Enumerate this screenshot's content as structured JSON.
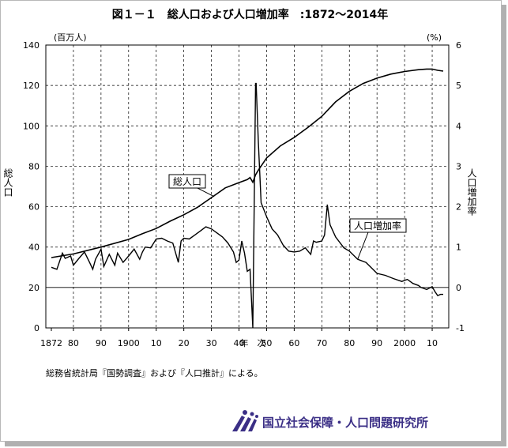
{
  "title": "図１－１　総人口および人口増加率　:1872～2014年",
  "source_note": "総務省統計局『国勢調査』および『人口推計』による。",
  "organization": "国立社会保障・人口問題研究所",
  "colors": {
    "line": "#000000",
    "grid": "#000000",
    "logo": "#3b2f86"
  },
  "chart_data": {
    "type": "line",
    "title": "図１－１　総人口および人口増加率　:1872～2014年",
    "xlabel": "年　次",
    "left_unit": "(百万人)",
    "right_unit": "(%)",
    "left_axis_label": "総人口",
    "right_axis_label": "人口増加率",
    "xlim": [
      1870,
      2016
    ],
    "ylim_left": [
      0,
      140
    ],
    "ylim_right": [
      -1,
      6
    ],
    "x_ticks": [
      1872,
      1880,
      1890,
      1900,
      1910,
      1920,
      1930,
      1940,
      1950,
      1960,
      1970,
      1980,
      1990,
      2000,
      2010
    ],
    "x_tick_labels": [
      "1872",
      "80",
      "90",
      "1900",
      "10",
      "20",
      "30",
      "40",
      "50",
      "60",
      "70",
      "80",
      "90",
      "2000",
      "10"
    ],
    "y_left_ticks": [
      0,
      20,
      40,
      60,
      80,
      100,
      120,
      140
    ],
    "y_right_ticks": [
      -1,
      0,
      1,
      2,
      3,
      4,
      5,
      6
    ],
    "grid": true,
    "series": [
      {
        "name": "総人口",
        "axis": "left",
        "x": [
          1872,
          1880,
          1890,
          1900,
          1905,
          1910,
          1915,
          1920,
          1925,
          1930,
          1935,
          1940,
          1943,
          1944,
          1945,
          1946,
          1947,
          1950,
          1955,
          1960,
          1965,
          1970,
          1975,
          1980,
          1985,
          1990,
          1995,
          2000,
          2005,
          2008,
          2010,
          2012,
          2014
        ],
        "values": [
          34.8,
          36.6,
          40.0,
          43.8,
          46.6,
          49.2,
          52.8,
          56.0,
          59.7,
          64.5,
          69.3,
          71.9,
          73.4,
          74.4,
          72.1,
          75.8,
          78.1,
          84.1,
          90.1,
          94.3,
          99.2,
          104.7,
          111.9,
          117.1,
          121.0,
          123.6,
          125.6,
          126.9,
          127.8,
          128.1,
          128.1,
          127.5,
          127.1
        ]
      },
      {
        "name": "人口増加率",
        "axis": "right",
        "x": [
          1872,
          1874,
          1876,
          1877,
          1879,
          1880,
          1882,
          1884,
          1886,
          1887,
          1888,
          1890,
          1891,
          1893,
          1895,
          1896,
          1898,
          1900,
          1902,
          1904,
          1905,
          1906,
          1908,
          1910,
          1912,
          1914,
          1916,
          1918,
          1919,
          1920,
          1922,
          1924,
          1926,
          1928,
          1930,
          1932,
          1934,
          1936,
          1938,
          1939,
          1940,
          1941,
          1942,
          1943,
          1944,
          1945,
          1946,
          1946.2,
          1947,
          1948,
          1950,
          1952,
          1954,
          1956,
          1958,
          1960,
          1962,
          1964,
          1966,
          1967,
          1968,
          1970,
          1971,
          1972,
          1973,
          1975,
          1978,
          1980,
          1983,
          1986,
          1990,
          1993,
          1996,
          1999,
          2001,
          2003,
          2005,
          2006,
          2008,
          2010,
          2011,
          2012,
          2013,
          2014
        ],
        "values": [
          0.5,
          0.45,
          0.85,
          0.72,
          0.78,
          0.55,
          0.72,
          0.88,
          0.6,
          0.45,
          0.7,
          0.95,
          0.52,
          0.82,
          0.55,
          0.85,
          0.62,
          0.78,
          0.95,
          0.7,
          0.88,
          1.0,
          0.98,
          1.2,
          1.22,
          1.15,
          1.1,
          0.62,
          1.15,
          1.22,
          1.2,
          1.3,
          1.4,
          1.5,
          1.45,
          1.35,
          1.25,
          1.1,
          0.88,
          0.62,
          0.68,
          1.15,
          0.85,
          0.4,
          0.45,
          -1.0,
          5.05,
          5.05,
          3.6,
          2.1,
          1.75,
          1.45,
          1.3,
          1.05,
          0.9,
          0.88,
          0.9,
          0.98,
          0.82,
          1.15,
          1.12,
          1.15,
          1.3,
          2.05,
          1.55,
          1.25,
          0.98,
          0.9,
          0.7,
          0.62,
          0.35,
          0.3,
          0.22,
          0.15,
          0.2,
          0.1,
          0.05,
          0.0,
          -0.05,
          0.02,
          -0.1,
          -0.2,
          -0.17,
          -0.17
        ]
      }
    ],
    "annotations": [
      "総人口",
      "人口増加率"
    ]
  }
}
